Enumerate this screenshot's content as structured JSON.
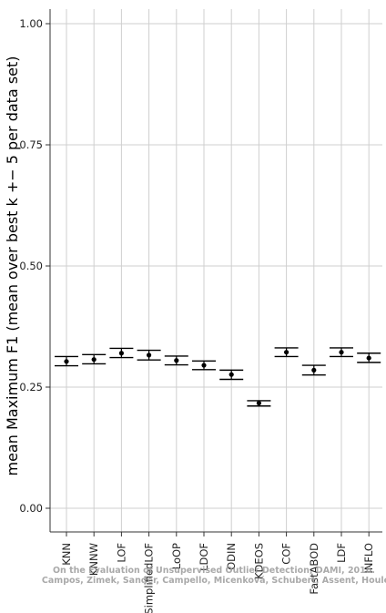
{
  "chart_data": {
    "type": "scatter",
    "title": "",
    "xlabel": "",
    "ylabel": "mean Maximum F1 (mean over best k +− 5 per data set)",
    "ylim": [
      0.0,
      1.0
    ],
    "y_ticks": [
      "0.00",
      "0.25",
      "0.50",
      "0.75",
      "1.00"
    ],
    "grid": true,
    "categories": [
      "KNN",
      "KNNW",
      "LOF",
      "SimplifiedLOF",
      "LoOP",
      "LDOF",
      "ODIN",
      "KDEOS",
      "COF",
      "FastABOD",
      "LDF",
      "INFLO"
    ],
    "series": [
      {
        "values": [
          0.303,
          0.307,
          0.32,
          0.316,
          0.305,
          0.295,
          0.276,
          0.217,
          0.322,
          0.285,
          0.322,
          0.31
        ],
        "error_low": [
          0.294,
          0.298,
          0.311,
          0.306,
          0.296,
          0.286,
          0.266,
          0.211,
          0.313,
          0.275,
          0.313,
          0.301
        ],
        "error_high": [
          0.313,
          0.317,
          0.33,
          0.326,
          0.314,
          0.304,
          0.285,
          0.222,
          0.331,
          0.295,
          0.331,
          0.32
        ]
      }
    ]
  },
  "watermark": {
    "line1": "On the Evaluation of Unsupervised Outlier Detection, DAMI, 2016.",
    "line2": "Campos, Zimek, Sander, Campello, Micenková, Schubert, Assent, Houle"
  }
}
